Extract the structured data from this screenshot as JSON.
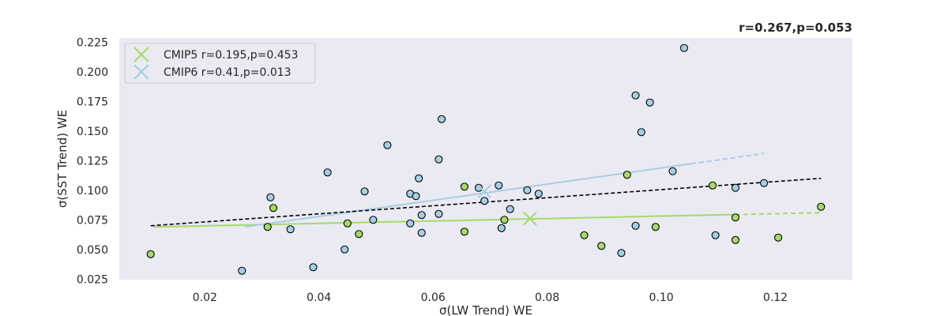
{
  "chart_data": {
    "type": "scatter",
    "title": "r=0.267,p=0.053",
    "xlabel": "σ(LW Trend) WE",
    "ylabel": "σ(SST Trend) WE",
    "xlim": [
      0.005,
      0.1335
    ],
    "ylim": [
      0.0245,
      0.2285
    ],
    "xticks": [
      0.02,
      0.04,
      0.06,
      0.08,
      0.1,
      0.12
    ],
    "xtick_labels": [
      "0.02",
      "0.04",
      "0.06",
      "0.08",
      "0.10",
      "0.12"
    ],
    "yticks": [
      0.025,
      0.05,
      0.075,
      0.1,
      0.125,
      0.15,
      0.175,
      0.2,
      0.225
    ],
    "ytick_labels": [
      "0.025",
      "0.050",
      "0.075",
      "0.100",
      "0.125",
      "0.150",
      "0.175",
      "0.200",
      "0.225"
    ],
    "grid": false,
    "legend_position": "top-left",
    "background_color": "#eaeaf2",
    "series": [
      {
        "name": "CMIP5 r=0.195,p=0.453",
        "color": "#a6d96a",
        "points": [
          [
            0.0105,
            0.046
          ],
          [
            0.031,
            0.069
          ],
          [
            0.032,
            0.085
          ],
          [
            0.045,
            0.072
          ],
          [
            0.047,
            0.063
          ],
          [
            0.0655,
            0.103
          ],
          [
            0.0655,
            0.065
          ],
          [
            0.0725,
            0.075
          ],
          [
            0.0865,
            0.062
          ],
          [
            0.0895,
            0.053
          ],
          [
            0.094,
            0.113
          ],
          [
            0.099,
            0.069
          ],
          [
            0.109,
            0.104
          ],
          [
            0.113,
            0.077
          ],
          [
            0.113,
            0.058
          ],
          [
            0.1205,
            0.06
          ],
          [
            0.128,
            0.086
          ]
        ],
        "mean_marker": [
          0.077,
          0.076
        ],
        "fit_line": [
          [
            0.011,
            0.069
          ],
          [
            0.128,
            0.081
          ]
        ]
      },
      {
        "name": "CMIP6 r=0.41,p=0.013",
        "color": "#a6cee3",
        "points": [
          [
            0.0265,
            0.032
          ],
          [
            0.0315,
            0.094
          ],
          [
            0.035,
            0.067
          ],
          [
            0.039,
            0.035
          ],
          [
            0.0415,
            0.115
          ],
          [
            0.0445,
            0.05
          ],
          [
            0.048,
            0.099
          ],
          [
            0.0495,
            0.075
          ],
          [
            0.052,
            0.138
          ],
          [
            0.056,
            0.097
          ],
          [
            0.056,
            0.072
          ],
          [
            0.057,
            0.095
          ],
          [
            0.0575,
            0.11
          ],
          [
            0.058,
            0.079
          ],
          [
            0.058,
            0.064
          ],
          [
            0.061,
            0.08
          ],
          [
            0.061,
            0.126
          ],
          [
            0.0615,
            0.16
          ],
          [
            0.068,
            0.102
          ],
          [
            0.069,
            0.091
          ],
          [
            0.0715,
            0.104
          ],
          [
            0.072,
            0.068
          ],
          [
            0.0735,
            0.084
          ],
          [
            0.0765,
            0.1
          ],
          [
            0.0785,
            0.097
          ],
          [
            0.093,
            0.047
          ],
          [
            0.0955,
            0.07
          ],
          [
            0.0955,
            0.18
          ],
          [
            0.0965,
            0.149
          ],
          [
            0.098,
            0.174
          ],
          [
            0.102,
            0.116
          ],
          [
            0.104,
            0.22
          ],
          [
            0.1095,
            0.062
          ],
          [
            0.113,
            0.102
          ],
          [
            0.118,
            0.106
          ]
        ],
        "mean_marker": [
          0.069,
          0.099
        ],
        "fit_line": [
          [
            0.027,
            0.069
          ],
          [
            0.118,
            0.131
          ]
        ]
      }
    ],
    "all_fit_line": {
      "color": "#000000",
      "line": [
        [
          0.0105,
          0.07
        ],
        [
          0.128,
          0.11
        ]
      ]
    }
  }
}
